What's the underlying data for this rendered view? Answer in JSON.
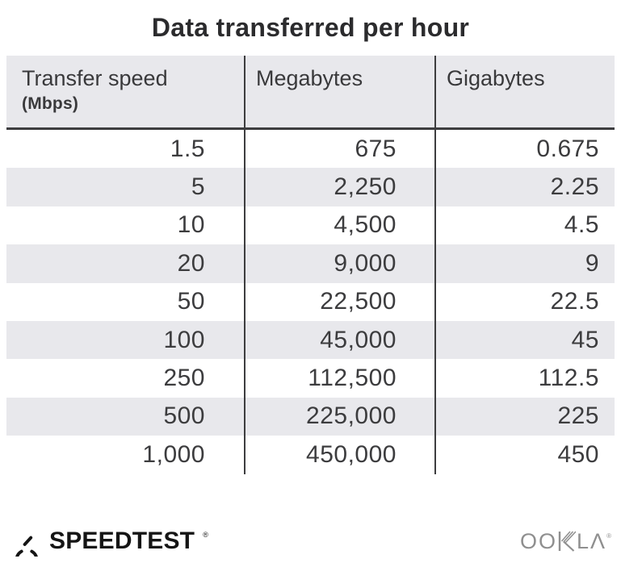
{
  "title": "Data transferred per hour",
  "table": {
    "headers": [
      {
        "label": "Transfer speed",
        "sublabel": "(Mbps)"
      },
      {
        "label": "Megabytes"
      },
      {
        "label": "Gigabytes"
      }
    ],
    "rows": [
      [
        "1.5",
        "675",
        "0.675"
      ],
      [
        "5",
        "2,250",
        "2.25"
      ],
      [
        "10",
        "4,500",
        "4.5"
      ],
      [
        "20",
        "9,000",
        "9"
      ],
      [
        "50",
        "22,500",
        "22.5"
      ],
      [
        "100",
        "45,000",
        "45"
      ],
      [
        "250",
        "112,500",
        "112.5"
      ],
      [
        "500",
        "225,000",
        "225"
      ],
      [
        "1,000",
        "450,000",
        "450"
      ]
    ]
  },
  "footer": {
    "speedtest_label": "SPEEDTEST",
    "speedtest_reg": "®",
    "ookla_oo": "OO",
    "ookla_la": "LΛ",
    "ookla_reg": "®"
  },
  "colors": {
    "header_bg": "#e8e8ec",
    "row_alt_bg": "#e8e8ec",
    "divider": "#3d3d3f",
    "cell_text": "#3c3c3e",
    "title_text": "#2b2b2d",
    "speedtest_black": "#151515",
    "ookla_gray": "#8f8f8f"
  },
  "chart_data": {
    "type": "table",
    "title": "Data transferred per hour",
    "columns": [
      "Transfer speed (Mbps)",
      "Megabytes",
      "Gigabytes"
    ],
    "rows": [
      [
        1.5,
        675,
        0.675
      ],
      [
        5,
        2250,
        2.25
      ],
      [
        10,
        4500,
        4.5
      ],
      [
        20,
        9000,
        9
      ],
      [
        50,
        22500,
        22.5
      ],
      [
        100,
        45000,
        45
      ],
      [
        250,
        112500,
        112.5
      ],
      [
        500,
        225000,
        225
      ],
      [
        1000,
        450000,
        450
      ]
    ]
  }
}
